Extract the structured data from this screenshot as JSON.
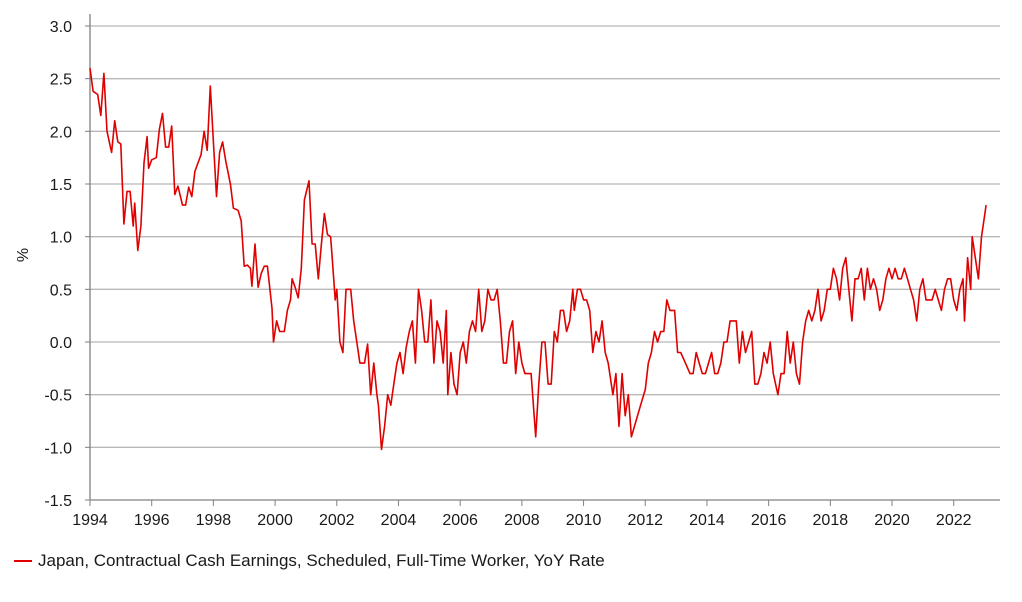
{
  "chart_data": {
    "type": "line",
    "title": "",
    "xlabel": "",
    "ylabel": "%",
    "xlim": [
      1994.0,
      2023.5
    ],
    "ylim": [
      -1.5,
      3.0
    ],
    "x_ticks": [
      1994,
      1996,
      1998,
      2000,
      2002,
      2004,
      2006,
      2008,
      2010,
      2012,
      2014,
      2016,
      2018,
      2020,
      2022
    ],
    "x_tick_labels": [
      "1994",
      "1996",
      "1998",
      "2000",
      "2002",
      "2004",
      "2006",
      "2008",
      "2010",
      "2012",
      "2014",
      "2016",
      "2018",
      "2020",
      "2022"
    ],
    "y_ticks": [
      -1.5,
      -1.0,
      -0.5,
      0.0,
      0.5,
      1.0,
      1.5,
      2.0,
      2.5,
      3.0
    ],
    "y_tick_labels": [
      "-1.5",
      "-1.0",
      "-0.5",
      "0.0",
      "0.5",
      "1.0",
      "1.5",
      "2.0",
      "2.5",
      "3.0"
    ],
    "grid": "horizontal",
    "legend_position": "bottom-left",
    "series": [
      {
        "name": "Japan, Contractual Cash Earnings, Scheduled, Full-Time Worker, YoY Rate",
        "color": "#e00000",
        "points": [
          [
            1994.0,
            2.6
          ],
          [
            1994.1,
            2.38
          ],
          [
            1994.25,
            2.35
          ],
          [
            1994.35,
            2.15
          ],
          [
            1994.45,
            2.55
          ],
          [
            1994.55,
            2.0
          ],
          [
            1994.7,
            1.8
          ],
          [
            1994.8,
            2.1
          ],
          [
            1994.9,
            1.9
          ],
          [
            1995.0,
            1.88
          ],
          [
            1995.1,
            1.12
          ],
          [
            1995.2,
            1.43
          ],
          [
            1995.3,
            1.43
          ],
          [
            1995.4,
            1.1
          ],
          [
            1995.45,
            1.32
          ],
          [
            1995.55,
            0.87
          ],
          [
            1995.65,
            1.1
          ],
          [
            1995.75,
            1.7
          ],
          [
            1995.85,
            1.95
          ],
          [
            1995.9,
            1.65
          ],
          [
            1996.0,
            1.73
          ],
          [
            1996.15,
            1.75
          ],
          [
            1996.25,
            2.02
          ],
          [
            1996.35,
            2.17
          ],
          [
            1996.45,
            1.85
          ],
          [
            1996.55,
            1.85
          ],
          [
            1996.65,
            2.05
          ],
          [
            1996.75,
            1.4
          ],
          [
            1996.85,
            1.48
          ],
          [
            1997.0,
            1.3
          ],
          [
            1997.1,
            1.3
          ],
          [
            1997.2,
            1.47
          ],
          [
            1997.3,
            1.38
          ],
          [
            1997.4,
            1.62
          ],
          [
            1997.5,
            1.7
          ],
          [
            1997.6,
            1.78
          ],
          [
            1997.7,
            2.0
          ],
          [
            1997.8,
            1.82
          ],
          [
            1997.9,
            2.43
          ],
          [
            1998.0,
            1.9
          ],
          [
            1998.1,
            1.38
          ],
          [
            1998.2,
            1.8
          ],
          [
            1998.3,
            1.9
          ],
          [
            1998.4,
            1.72
          ],
          [
            1998.55,
            1.5
          ],
          [
            1998.65,
            1.27
          ],
          [
            1998.8,
            1.25
          ],
          [
            1998.9,
            1.15
          ],
          [
            1999.0,
            0.72
          ],
          [
            1999.1,
            0.73
          ],
          [
            1999.2,
            0.7
          ],
          [
            1999.25,
            0.53
          ],
          [
            1999.35,
            0.93
          ],
          [
            1999.45,
            0.52
          ],
          [
            1999.55,
            0.65
          ],
          [
            1999.65,
            0.72
          ],
          [
            1999.75,
            0.72
          ],
          [
            1999.9,
            0.32
          ],
          [
            1999.95,
            0.0
          ],
          [
            2000.05,
            0.2
          ],
          [
            2000.15,
            0.1
          ],
          [
            2000.3,
            0.1
          ],
          [
            2000.4,
            0.3
          ],
          [
            2000.5,
            0.4
          ],
          [
            2000.55,
            0.6
          ],
          [
            2000.65,
            0.52
          ],
          [
            2000.75,
            0.42
          ],
          [
            2000.85,
            0.7
          ],
          [
            2000.95,
            1.35
          ],
          [
            2001.1,
            1.53
          ],
          [
            2001.2,
            0.93
          ],
          [
            2001.3,
            0.93
          ],
          [
            2001.4,
            0.6
          ],
          [
            2001.5,
            0.93
          ],
          [
            2001.6,
            1.22
          ],
          [
            2001.7,
            1.02
          ],
          [
            2001.8,
            1.0
          ],
          [
            2001.85,
            0.8
          ],
          [
            2001.95,
            0.4
          ],
          [
            2002.0,
            0.5
          ],
          [
            2002.1,
            0.0
          ],
          [
            2002.2,
            -0.1
          ],
          [
            2002.3,
            0.5
          ],
          [
            2002.45,
            0.5
          ],
          [
            2002.55,
            0.2
          ],
          [
            2002.65,
            0.0
          ],
          [
            2002.75,
            -0.2
          ],
          [
            2002.9,
            -0.2
          ],
          [
            2003.0,
            -0.02
          ],
          [
            2003.1,
            -0.5
          ],
          [
            2003.2,
            -0.2
          ],
          [
            2003.3,
            -0.5
          ],
          [
            2003.35,
            -0.6
          ],
          [
            2003.45,
            -1.02
          ],
          [
            2003.55,
            -0.8
          ],
          [
            2003.65,
            -0.5
          ],
          [
            2003.75,
            -0.6
          ],
          [
            2003.85,
            -0.4
          ],
          [
            2003.95,
            -0.2
          ],
          [
            2004.05,
            -0.1
          ],
          [
            2004.15,
            -0.3
          ],
          [
            2004.25,
            -0.05
          ],
          [
            2004.35,
            0.1
          ],
          [
            2004.45,
            0.2
          ],
          [
            2004.55,
            -0.2
          ],
          [
            2004.65,
            0.5
          ],
          [
            2004.75,
            0.3
          ],
          [
            2004.85,
            0.0
          ],
          [
            2004.95,
            0.0
          ],
          [
            2005.05,
            0.4
          ],
          [
            2005.15,
            -0.2
          ],
          [
            2005.25,
            0.2
          ],
          [
            2005.35,
            0.1
          ],
          [
            2005.45,
            -0.2
          ],
          [
            2005.55,
            0.3
          ],
          [
            2005.6,
            -0.5
          ],
          [
            2005.7,
            -0.1
          ],
          [
            2005.8,
            -0.4
          ],
          [
            2005.9,
            -0.5
          ],
          [
            2006.0,
            -0.1
          ],
          [
            2006.1,
            0.0
          ],
          [
            2006.2,
            -0.2
          ],
          [
            2006.3,
            0.1
          ],
          [
            2006.4,
            0.2
          ],
          [
            2006.5,
            0.1
          ],
          [
            2006.6,
            0.5
          ],
          [
            2006.7,
            0.1
          ],
          [
            2006.8,
            0.2
          ],
          [
            2006.9,
            0.5
          ],
          [
            2007.0,
            0.4
          ],
          [
            2007.1,
            0.4
          ],
          [
            2007.2,
            0.5
          ],
          [
            2007.3,
            0.2
          ],
          [
            2007.4,
            -0.2
          ],
          [
            2007.5,
            -0.2
          ],
          [
            2007.6,
            0.1
          ],
          [
            2007.7,
            0.2
          ],
          [
            2007.8,
            -0.3
          ],
          [
            2007.9,
            0.0
          ],
          [
            2008.0,
            -0.2
          ],
          [
            2008.1,
            -0.3
          ],
          [
            2008.2,
            -0.3
          ],
          [
            2008.3,
            -0.3
          ],
          [
            2008.45,
            -0.9
          ],
          [
            2008.55,
            -0.4
          ],
          [
            2008.65,
            0.0
          ],
          [
            2008.75,
            0.0
          ],
          [
            2008.85,
            -0.4
          ],
          [
            2008.95,
            -0.4
          ],
          [
            2009.05,
            0.1
          ],
          [
            2009.15,
            0.0
          ],
          [
            2009.25,
            0.3
          ],
          [
            2009.35,
            0.3
          ],
          [
            2009.45,
            0.1
          ],
          [
            2009.55,
            0.2
          ],
          [
            2009.65,
            0.5
          ],
          [
            2009.7,
            0.3
          ],
          [
            2009.8,
            0.5
          ],
          [
            2009.9,
            0.5
          ],
          [
            2010.0,
            0.4
          ],
          [
            2010.1,
            0.4
          ],
          [
            2010.2,
            0.3
          ],
          [
            2010.3,
            -0.1
          ],
          [
            2010.4,
            0.1
          ],
          [
            2010.5,
            0.0
          ],
          [
            2010.6,
            0.2
          ],
          [
            2010.7,
            -0.1
          ],
          [
            2010.8,
            -0.2
          ],
          [
            2010.95,
            -0.5
          ],
          [
            2011.05,
            -0.3
          ],
          [
            2011.15,
            -0.8
          ],
          [
            2011.25,
            -0.3
          ],
          [
            2011.35,
            -0.7
          ],
          [
            2011.45,
            -0.5
          ],
          [
            2011.55,
            -0.9
          ],
          [
            2011.7,
            -0.75
          ],
          [
            2011.85,
            -0.6
          ],
          [
            2012.0,
            -0.45
          ],
          [
            2012.1,
            -0.2
          ],
          [
            2012.2,
            -0.1
          ],
          [
            2012.3,
            0.1
          ],
          [
            2012.4,
            0.0
          ],
          [
            2012.5,
            0.1
          ],
          [
            2012.6,
            0.1
          ],
          [
            2012.7,
            0.4
          ],
          [
            2012.8,
            0.3
          ],
          [
            2012.95,
            0.3
          ],
          [
            2013.05,
            -0.1
          ],
          [
            2013.15,
            -0.1
          ],
          [
            2013.3,
            -0.2
          ],
          [
            2013.45,
            -0.3
          ],
          [
            2013.55,
            -0.3
          ],
          [
            2013.65,
            -0.1
          ],
          [
            2013.75,
            -0.2
          ],
          [
            2013.85,
            -0.3
          ],
          [
            2013.95,
            -0.3
          ],
          [
            2014.05,
            -0.2
          ],
          [
            2014.15,
            -0.1
          ],
          [
            2014.25,
            -0.3
          ],
          [
            2014.35,
            -0.3
          ],
          [
            2014.45,
            -0.2
          ],
          [
            2014.55,
            0.0
          ],
          [
            2014.65,
            0.0
          ],
          [
            2014.75,
            0.2
          ],
          [
            2014.85,
            0.2
          ],
          [
            2014.95,
            0.2
          ],
          [
            2015.05,
            -0.2
          ],
          [
            2015.15,
            0.1
          ],
          [
            2015.25,
            -0.1
          ],
          [
            2015.35,
            0.0
          ],
          [
            2015.45,
            0.1
          ],
          [
            2015.55,
            -0.4
          ],
          [
            2015.65,
            -0.4
          ],
          [
            2015.75,
            -0.3
          ],
          [
            2015.85,
            -0.1
          ],
          [
            2015.95,
            -0.2
          ],
          [
            2016.05,
            0.0
          ],
          [
            2016.15,
            -0.3
          ],
          [
            2016.3,
            -0.5
          ],
          [
            2016.4,
            -0.3
          ],
          [
            2016.5,
            -0.3
          ],
          [
            2016.6,
            0.1
          ],
          [
            2016.7,
            -0.2
          ],
          [
            2016.8,
            0.0
          ],
          [
            2016.9,
            -0.3
          ],
          [
            2017.0,
            -0.4
          ],
          [
            2017.1,
            0.0
          ],
          [
            2017.2,
            0.2
          ],
          [
            2017.3,
            0.3
          ],
          [
            2017.4,
            0.2
          ],
          [
            2017.5,
            0.3
          ],
          [
            2017.6,
            0.5
          ],
          [
            2017.7,
            0.2
          ],
          [
            2017.8,
            0.3
          ],
          [
            2017.9,
            0.5
          ],
          [
            2018.0,
            0.5
          ],
          [
            2018.1,
            0.7
          ],
          [
            2018.2,
            0.6
          ],
          [
            2018.3,
            0.4
          ],
          [
            2018.4,
            0.7
          ],
          [
            2018.5,
            0.8
          ],
          [
            2018.6,
            0.5
          ],
          [
            2018.7,
            0.2
          ],
          [
            2018.8,
            0.6
          ],
          [
            2018.9,
            0.6
          ],
          [
            2019.0,
            0.7
          ],
          [
            2019.1,
            0.4
          ],
          [
            2019.2,
            0.7
          ],
          [
            2019.3,
            0.5
          ],
          [
            2019.4,
            0.6
          ],
          [
            2019.5,
            0.5
          ],
          [
            2019.6,
            0.3
          ],
          [
            2019.7,
            0.4
          ],
          [
            2019.8,
            0.6
          ],
          [
            2019.9,
            0.7
          ],
          [
            2020.0,
            0.6
          ],
          [
            2020.1,
            0.7
          ],
          [
            2020.2,
            0.6
          ],
          [
            2020.3,
            0.6
          ],
          [
            2020.4,
            0.7
          ],
          [
            2020.5,
            0.6
          ],
          [
            2020.6,
            0.5
          ],
          [
            2020.7,
            0.4
          ],
          [
            2020.8,
            0.2
          ],
          [
            2020.9,
            0.5
          ],
          [
            2021.0,
            0.6
          ],
          [
            2021.1,
            0.4
          ],
          [
            2021.2,
            0.4
          ],
          [
            2021.3,
            0.4
          ],
          [
            2021.4,
            0.5
          ],
          [
            2021.5,
            0.4
          ],
          [
            2021.6,
            0.3
          ],
          [
            2021.7,
            0.5
          ],
          [
            2021.8,
            0.6
          ],
          [
            2021.9,
            0.6
          ],
          [
            2022.0,
            0.4
          ],
          [
            2022.1,
            0.3
          ],
          [
            2022.2,
            0.5
          ],
          [
            2022.3,
            0.6
          ],
          [
            2022.35,
            0.2
          ],
          [
            2022.45,
            0.8
          ],
          [
            2022.55,
            0.5
          ],
          [
            2022.6,
            1.0
          ],
          [
            2022.7,
            0.8
          ],
          [
            2022.8,
            0.6
          ],
          [
            2022.9,
            1.0
          ],
          [
            2023.0,
            1.2
          ],
          [
            2023.05,
            1.3
          ]
        ]
      }
    ]
  }
}
